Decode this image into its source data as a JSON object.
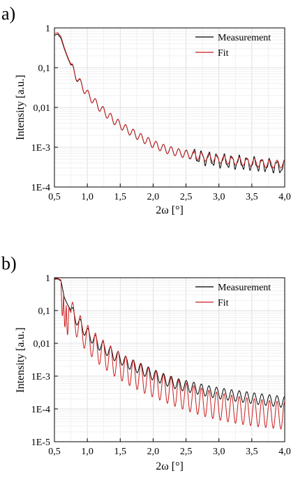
{
  "chart_data": [
    {
      "type": "line",
      "panel_label": "a)",
      "xlabel": "2ω [°]",
      "ylabel": "Intensity [a.u.]",
      "xlim": [
        0.5,
        4.0
      ],
      "ylim": [
        0.0001,
        1
      ],
      "yscale": "log",
      "grid": true,
      "legend_position": "top-right",
      "x_ticks": [
        0.5,
        1.0,
        1.5,
        2.0,
        2.5,
        3.0,
        3.5,
        4.0
      ],
      "x_tick_labels": [
        "0,5",
        "1,0",
        "1,5",
        "2,0",
        "2,5",
        "3,0",
        "3,5",
        "4,0"
      ],
      "y_ticks": [
        1,
        0.1,
        0.01,
        0.001,
        0.0001
      ],
      "y_tick_labels": [
        "1",
        "0,1",
        "0,01",
        "1E-3",
        "1E-4"
      ],
      "series": [
        {
          "name": "Measurement",
          "color": "#000000",
          "x": [
            0.5,
            0.55,
            0.6,
            0.65,
            0.7,
            0.8,
            0.9,
            1.0,
            1.2,
            1.4,
            1.6,
            1.8,
            2.0,
            2.2,
            2.4,
            2.6,
            2.8,
            3.0,
            3.2,
            3.4,
            3.6,
            3.8,
            4.0
          ],
          "values": [
            0.65,
            0.7,
            0.55,
            0.3,
            0.18,
            0.075,
            0.038,
            0.022,
            0.0095,
            0.0048,
            0.0028,
            0.0018,
            0.0012,
            0.00088,
            0.00072,
            0.00062,
            0.00052,
            0.00046,
            0.00043,
            0.0004,
            0.00037,
            0.00034,
            0.00031
          ]
        },
        {
          "name": "Fit",
          "color": "#cc1f1f",
          "x": [
            0.5,
            0.55,
            0.6,
            0.65,
            0.7,
            0.8,
            0.9,
            1.0,
            1.2,
            1.4,
            1.6,
            1.8,
            2.0,
            2.2,
            2.4,
            2.6,
            2.8,
            3.0,
            3.2,
            3.4,
            3.6,
            3.8,
            4.0
          ],
          "values": [
            0.72,
            0.76,
            0.6,
            0.32,
            0.19,
            0.078,
            0.039,
            0.022,
            0.0095,
            0.0048,
            0.0028,
            0.0018,
            0.0012,
            0.00088,
            0.00072,
            0.00064,
            0.00056,
            0.0005,
            0.00046,
            0.00043,
            0.0004,
            0.00038,
            0.00037
          ]
        }
      ]
    },
    {
      "type": "line",
      "panel_label": "b)",
      "xlabel": "2ω [°]",
      "ylabel": "Intensity [a.u.]",
      "xlim": [
        0.5,
        4.0
      ],
      "ylim": [
        1e-05,
        1
      ],
      "yscale": "log",
      "grid": true,
      "legend_position": "top-right",
      "x_ticks": [
        0.5,
        1.0,
        1.5,
        2.0,
        2.5,
        3.0,
        3.5,
        4.0
      ],
      "x_tick_labels": [
        "0,5",
        "1,0",
        "1,5",
        "2,0",
        "2,5",
        "3,0",
        "3,5",
        "4,0"
      ],
      "y_ticks": [
        1,
        0.1,
        0.01,
        0.001,
        0.0001,
        1e-05
      ],
      "y_tick_labels": [
        "1",
        "0,1",
        "0,01",
        "1E-3",
        "1E-4",
        "1E-5"
      ],
      "series": [
        {
          "name": "Measurement",
          "color": "#000000",
          "x": [
            0.5,
            0.55,
            0.6,
            0.65,
            0.7,
            0.8,
            0.9,
            1.0,
            1.2,
            1.4,
            1.6,
            1.8,
            2.0,
            2.2,
            2.4,
            2.6,
            2.8,
            3.0,
            3.2,
            3.4,
            3.6,
            3.8,
            4.0
          ],
          "values": [
            0.9,
            0.92,
            0.8,
            0.25,
            0.15,
            0.07,
            0.035,
            0.02,
            0.0085,
            0.0045,
            0.0026,
            0.0017,
            0.0011,
            0.00075,
            0.00055,
            0.00045,
            0.00036,
            0.0003,
            0.00026,
            0.00023,
            0.0002,
            0.00018,
            0.00016
          ]
        },
        {
          "name": "Fit",
          "color": "#cc1f1f",
          "x": [
            0.5,
            0.55,
            0.6,
            0.65,
            0.7,
            0.8,
            0.9,
            1.0,
            1.2,
            1.4,
            1.6,
            1.8,
            2.0,
            2.2,
            2.4,
            2.6,
            2.8,
            3.0,
            3.2,
            3.4,
            3.6,
            3.8,
            4.0
          ],
          "values": [
            0.95,
            0.95,
            0.85,
            0.28,
            0.14,
            0.055,
            0.025,
            0.014,
            0.0055,
            0.0027,
            0.0015,
            0.00092,
            0.0006,
            0.0004,
            0.00028,
            0.0002,
            0.00015,
            0.00012,
            0.0001,
            8.5e-05,
            7.5e-05,
            6.8e-05,
            6.2e-05
          ]
        }
      ]
    }
  ]
}
